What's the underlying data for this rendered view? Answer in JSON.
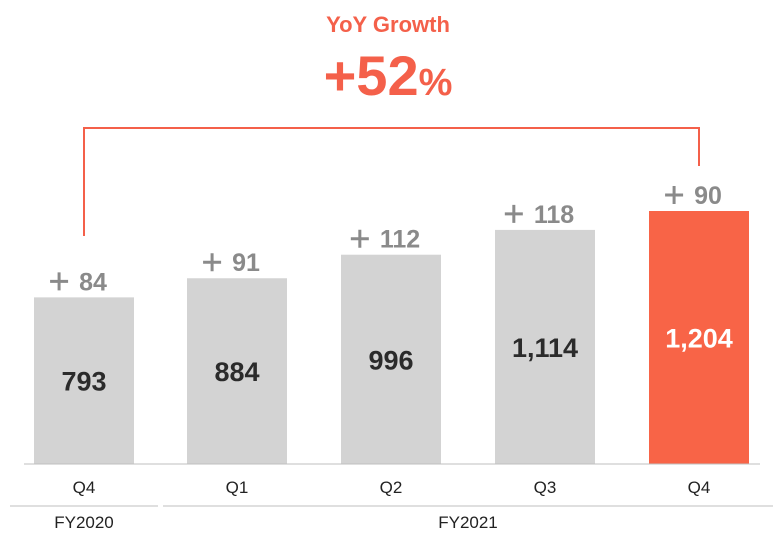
{
  "header": {
    "growth_label": "YoY Growth",
    "growth_value": "+52",
    "growth_unit": "%"
  },
  "colors": {
    "bar": "#d3d3d3",
    "highlight": "#f86447",
    "accent_text": "#f4604a",
    "increment_text": "#8a8a8a",
    "value_text": "#2b2b2b",
    "axis_text": "#222222",
    "divider": "#bfbfbf"
  },
  "chart_data": {
    "type": "bar",
    "categories": [
      "Q4",
      "Q1",
      "Q2",
      "Q3",
      "Q4"
    ],
    "groups": [
      {
        "label": "FY2020",
        "categories": [
          0
        ]
      },
      {
        "label": "FY2021",
        "categories": [
          1,
          2,
          3,
          4
        ]
      }
    ],
    "values": [
      793,
      884,
      996,
      1114,
      1204
    ],
    "value_labels": [
      "793",
      "884",
      "996",
      "1,114",
      "1,204"
    ],
    "increments": [
      "84",
      "91",
      "112",
      "118",
      "90"
    ],
    "highlight_index": 4,
    "annotation": "YoY Growth +52%",
    "ylim": [
      0,
      1204
    ]
  }
}
